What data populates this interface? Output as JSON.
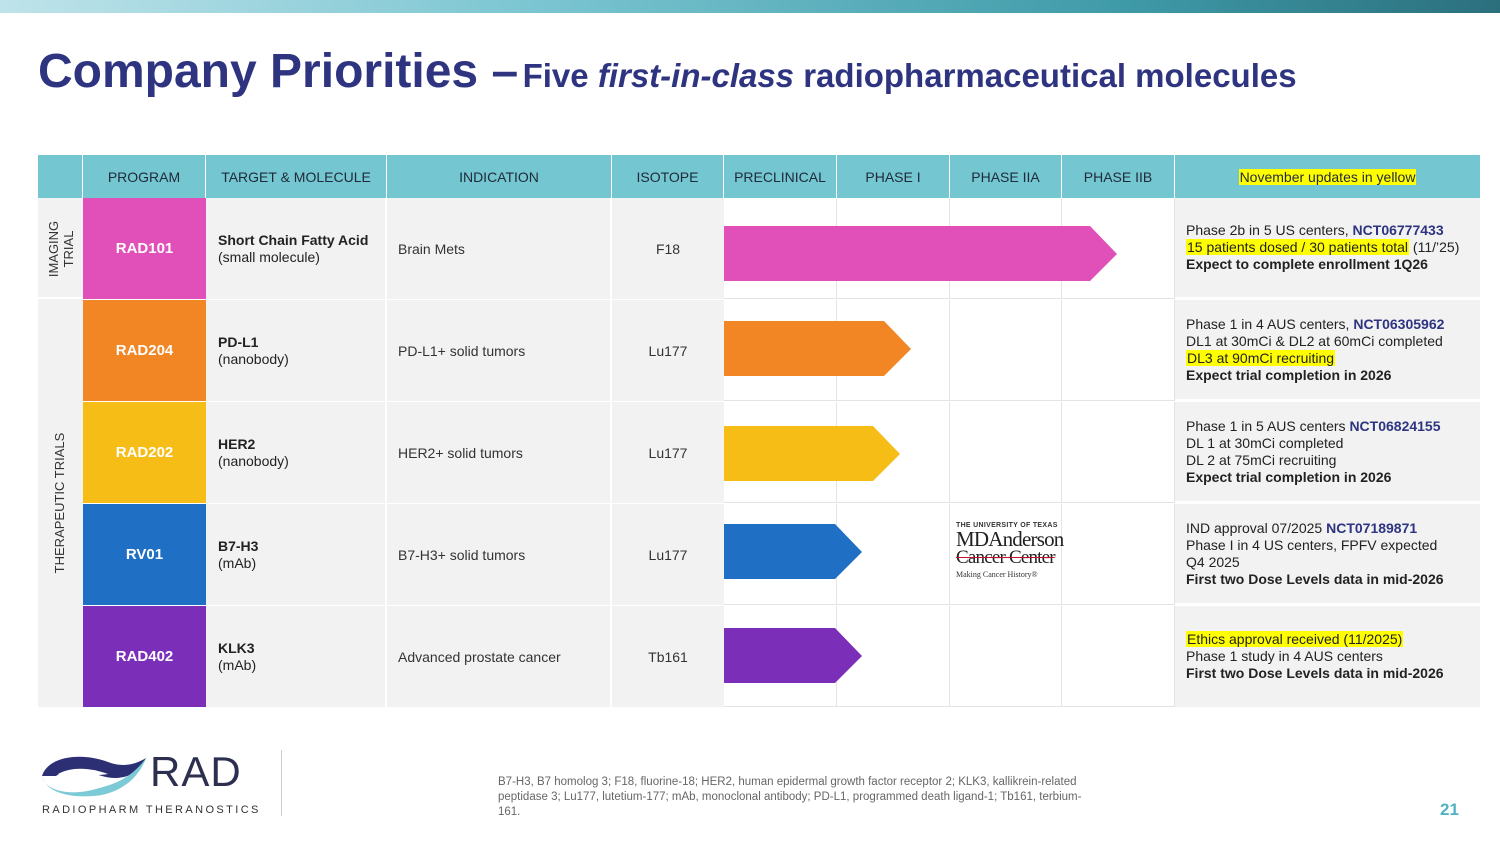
{
  "title": {
    "main": "Company Priorities –",
    "sub_pre": "Five",
    "sub_italic": "first-in-class",
    "sub_post": "radiopharmaceutical molecules"
  },
  "headers": {
    "program": "PROGRAM",
    "target": "TARGET & MOLECULE",
    "indication": "INDICATION",
    "isotope": "ISOTOPE",
    "preclinical": "PRECLINICAL",
    "phase1": "PHASE I",
    "phase2a": "PHASE IIA",
    "phase2b": "PHASE IIB",
    "updates": "November updates in yellow"
  },
  "groups": {
    "imaging_line1": "IMAGING",
    "imaging_line2": "TRIAL",
    "therapeutic": "THERAPEUTIC TRIALS"
  },
  "rows": [
    {
      "program": "RAD101",
      "color": "#e050b8",
      "target": "Short Chain Fatty Acid",
      "molecule": "(small molecule)",
      "indication": "Brain Mets",
      "isotope": "F18",
      "progress_phase": "Phase IIB",
      "notes": {
        "l1_pre": "Phase 2b in 5 US centers, ",
        "l1_nct": "NCT06777433",
        "l2_hl": "15 patients dosed / 30 patients total",
        "l2_post": " (11/’25)",
        "l3_bold": "Expect to complete enrollment 1Q26"
      }
    },
    {
      "program": "RAD204",
      "color": "#f28524",
      "target": "PD-L1",
      "molecule": "(nanobody)",
      "indication": "PD-L1+ solid tumors",
      "isotope": "Lu177",
      "progress_phase": "Phase I",
      "notes": {
        "l1_pre": "Phase 1 in  4 AUS centers, ",
        "l1_nct": "NCT06305962",
        "l2": "DL1 at 30mCi & DL2 at 60mCi completed",
        "l3_hl": "DL3  at 90mCi recruiting",
        "l4_bold": "Expect trial completion in 2026"
      }
    },
    {
      "program": "RAD202",
      "color": "#f7bd17",
      "target": "HER2",
      "molecule": "(nanobody)",
      "indication": "HER2+ solid tumors",
      "isotope": "Lu177",
      "progress_phase": "Phase I",
      "notes": {
        "l1_pre": "Phase 1 in 5 AUS centers ",
        "l1_nct": "NCT06824155",
        "l2": "DL 1 at 30mCi completed",
        "l3": "DL 2 at 75mCi recruiting",
        "l4_bold": "Expect trial completion in 2026"
      }
    },
    {
      "program": "RV01",
      "color": "#1f6fc4",
      "target": "B7-H3",
      "molecule": "(mAb)",
      "indication": "B7-H3+ solid tumors",
      "isotope": "Lu177",
      "progress_phase": "Preclinical",
      "notes": {
        "l1_pre": "IND approval 07/2025 ",
        "l1_nct": "NCT07189871",
        "l2": "Phase I in 4 US centers, FPFV expected",
        "l3": "Q4 2025",
        "l4_bold": "First two Dose Levels data in mid-2026"
      }
    },
    {
      "program": "RAD402",
      "color": "#7b2fb8",
      "target": "KLK3",
      "molecule": "(mAb)",
      "indication": "Advanced prostate cancer",
      "isotope": "Tb161",
      "progress_phase": "Preclinical",
      "notes": {
        "l1_hl": "Ethics approval received (11/2025)",
        "l2": "Phase 1 study in 4 AUS centers",
        "l3_bold": "First two Dose Levels data in mid-2026"
      }
    }
  ],
  "mdanderson": {
    "line1": "THE UNIVERSITY OF TEXAS",
    "line2": "MDAnderson",
    "line3": "Cancer Center",
    "line4": "Making Cancer History®"
  },
  "logo": {
    "name": "RAD",
    "tagline": "RADIOPHARM THERANOSTICS"
  },
  "footnote": "B7-H3, B7 homolog 3; F18, fluorine-18; HER2, human epidermal growth factor receptor 2; KLK3, kallikrein-related peptidase 3; Lu177, lutetium-177; mAb, monoclonal antibody; PD-L1, programmed death ligand-1; Tb161, terbium-161.",
  "page_number": "21",
  "colors": {
    "title": "#2e3480",
    "header": "#74c6d0",
    "highlight": "#ffff00",
    "nct": "#2e3480",
    "page_number": "#4fb3c1"
  }
}
